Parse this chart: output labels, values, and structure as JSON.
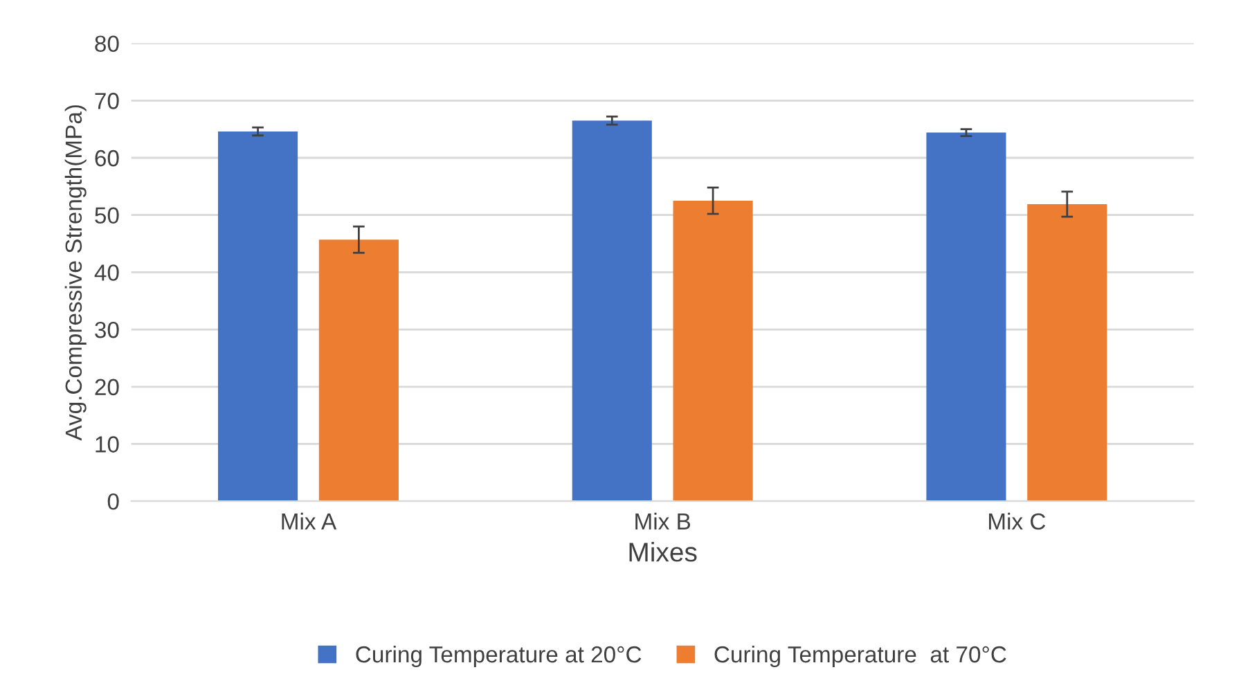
{
  "chart_data": {
    "type": "bar",
    "xlabel": "Mixes",
    "ylabel": "Avg.Compressive Strength(MPa)",
    "categories": [
      "Mix A",
      "Mix B",
      "Mix C"
    ],
    "series": [
      {
        "name": "Curing Temperature at 20°C",
        "color": "#4472c4",
        "values": [
          64.6,
          66.5,
          64.4
        ],
        "errors": [
          0.7,
          0.7,
          0.6
        ]
      },
      {
        "name": "Curing Temperature  at 70°C",
        "color": "#ed7d31",
        "values": [
          45.7,
          52.5,
          51.9
        ],
        "errors": [
          2.3,
          2.3,
          2.2
        ]
      }
    ],
    "ylim": [
      0,
      80
    ],
    "yticks": [
      0,
      10,
      20,
      30,
      40,
      50,
      60,
      70,
      80
    ],
    "grid": "y",
    "legend": "bottom"
  }
}
